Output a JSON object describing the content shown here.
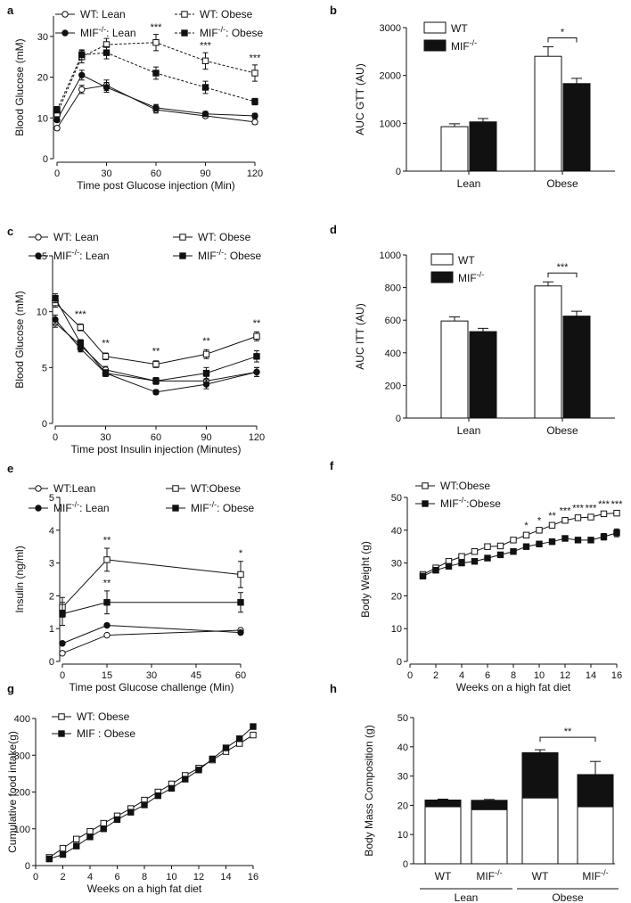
{
  "colors": {
    "ink": "#111111",
    "white": "#ffffff"
  },
  "panels": {
    "a": {
      "label": "a",
      "type": "line",
      "ylabel": "Blood Glucose (mM)",
      "xlabel": "Time post Glucose injection (Min)",
      "x": [
        0,
        15,
        30,
        60,
        90,
        120
      ],
      "xticks": [
        0,
        30,
        60,
        90,
        120
      ],
      "ylim": [
        0,
        35
      ],
      "yticks": [
        0,
        10,
        20,
        30
      ],
      "xlim": [
        0,
        120
      ],
      "series": [
        {
          "name": "WT: Lean",
          "values": [
            7.5,
            17,
            18,
            12,
            10.5,
            9
          ],
          "err": [
            0.5,
            1.0,
            1.3,
            0.8,
            0.5,
            0.5
          ],
          "marker": "circle",
          "fill": "white",
          "dash": false
        },
        {
          "name": "MIF-/-: Lean",
          "values": [
            9.5,
            20.5,
            17.5,
            12.5,
            11,
            10.5
          ],
          "err": [
            0.5,
            1.2,
            1.2,
            0.8,
            0.6,
            0.6
          ],
          "marker": "circle",
          "fill": "black",
          "dash": false
        },
        {
          "name": "WT: Obese",
          "values": [
            11,
            25,
            28,
            28.5,
            24,
            21
          ],
          "err": [
            0.8,
            1.5,
            1.5,
            2.0,
            2.0,
            2.0
          ],
          "marker": "square",
          "fill": "white",
          "dash": true
        },
        {
          "name": "MIF-/-: Obese",
          "values": [
            12,
            25.5,
            26,
            21,
            17.5,
            14
          ],
          "err": [
            0.8,
            1.2,
            1.5,
            1.5,
            1.5,
            0.8
          ],
          "marker": "square",
          "fill": "black",
          "dash": true
        }
      ],
      "annotations": [
        {
          "x": 60,
          "y": 31.5,
          "text": "***"
        },
        {
          "x": 90,
          "y": 27,
          "text": "***"
        },
        {
          "x": 120,
          "y": 24,
          "text": "***"
        }
      ]
    },
    "b": {
      "label": "b",
      "type": "bar",
      "ylabel": "AUC GTT (AU)",
      "categories": [
        "Lean",
        "Obese"
      ],
      "legend": [
        "WT",
        "MIF-/-"
      ],
      "ylim": [
        0,
        3000
      ],
      "yticks": [
        0,
        1000,
        2000,
        3000
      ],
      "series": [
        {
          "name": "WT",
          "values": [
            930,
            2400
          ],
          "err": [
            60,
            200
          ]
        },
        {
          "name": "MIF-/-",
          "values": [
            1030,
            1830
          ],
          "err": [
            70,
            110
          ]
        }
      ],
      "significance": "*"
    },
    "c": {
      "label": "c",
      "type": "line",
      "ylabel": "Blood Glucose (mM)",
      "xlabel": "Time post Insulin injection (Minutes)",
      "x": [
        0,
        15,
        30,
        60,
        90,
        120
      ],
      "xticks": [
        0,
        30,
        60,
        90,
        120
      ],
      "ylim": [
        0,
        15
      ],
      "yticks": [
        0,
        5,
        10,
        15
      ],
      "xlim": [
        0,
        120
      ],
      "series": [
        {
          "name": "WT: Lean",
          "values": [
            9.0,
            7.0,
            4.8,
            3.8,
            3.8,
            4.6
          ],
          "err": [
            0.4,
            0.3,
            0.3,
            0.3,
            0.4,
            0.4
          ],
          "marker": "circle",
          "fill": "white",
          "dash": false
        },
        {
          "name": "MIF-/-: Lean",
          "values": [
            9.3,
            6.7,
            4.5,
            2.8,
            3.5,
            4.6
          ],
          "err": [
            0.4,
            0.3,
            0.3,
            0.2,
            0.4,
            0.4
          ],
          "marker": "circle",
          "fill": "black",
          "dash": false
        },
        {
          "name": "WT: Obese",
          "values": [
            10.8,
            8.6,
            6.0,
            5.3,
            6.2,
            7.8
          ],
          "err": [
            0.4,
            0.3,
            0.3,
            0.3,
            0.4,
            0.4
          ],
          "marker": "square",
          "fill": "white",
          "dash": false
        },
        {
          "name": "MIF-/-: Obese",
          "values": [
            11.2,
            7.2,
            4.5,
            3.8,
            4.5,
            6.0
          ],
          "err": [
            0.4,
            0.3,
            0.3,
            0.3,
            0.5,
            0.5
          ],
          "marker": "square",
          "fill": "black",
          "dash": false
        }
      ],
      "annotations": [
        {
          "x": 15,
          "y": 9.5,
          "text": "***"
        },
        {
          "x": 30,
          "y": 6.9,
          "text": "**"
        },
        {
          "x": 60,
          "y": 6.2,
          "text": "**"
        },
        {
          "x": 90,
          "y": 7.1,
          "text": "**"
        },
        {
          "x": 120,
          "y": 8.7,
          "text": "**"
        }
      ]
    },
    "d": {
      "label": "d",
      "type": "bar",
      "ylabel": "AUC ITT (AU)",
      "categories": [
        "Lean",
        "Obese"
      ],
      "legend": [
        "WT",
        "MIF-/-"
      ],
      "ylim": [
        0,
        1000
      ],
      "yticks": [
        0,
        200,
        400,
        600,
        800,
        1000
      ],
      "series": [
        {
          "name": "WT",
          "values": [
            595,
            810
          ],
          "err": [
            25,
            25
          ]
        },
        {
          "name": "MIF-/-",
          "values": [
            530,
            625
          ],
          "err": [
            20,
            30
          ]
        }
      ],
      "significance": "***"
    },
    "e": {
      "label": "e",
      "type": "line",
      "ylabel": "Insulin (ng/ml)",
      "xlabel": "Time post Glucose challenge (Min)",
      "x": [
        0,
        15,
        60
      ],
      "xticks": [
        0,
        15,
        30,
        45,
        60
      ],
      "ylim": [
        0,
        5
      ],
      "yticks": [
        0,
        1,
        2,
        3,
        4,
        5
      ],
      "xlim": [
        0,
        60
      ],
      "series": [
        {
          "name": "WT:Lean",
          "values": [
            0.25,
            0.8,
            0.95
          ],
          "err": [
            0.03,
            0.05,
            0.05
          ],
          "marker": "circle",
          "fill": "white",
          "dash": false
        },
        {
          "name": "MIF-/-: Lean",
          "values": [
            0.55,
            1.1,
            0.88
          ],
          "err": [
            0.05,
            0.05,
            0.05
          ],
          "marker": "circle",
          "fill": "black",
          "dash": false
        },
        {
          "name": "WT:Obese",
          "values": [
            1.65,
            3.1,
            2.65
          ],
          "err": [
            0.3,
            0.35,
            0.4
          ],
          "marker": "square",
          "fill": "white",
          "dash": false
        },
        {
          "name": "MIF-/-: Obese",
          "values": [
            1.45,
            1.8,
            1.8
          ],
          "err": [
            0.35,
            0.35,
            0.3
          ],
          "marker": "square",
          "fill": "black",
          "dash": false
        }
      ],
      "annotations": [
        {
          "x": 15,
          "y": 3.6,
          "text": "**"
        },
        {
          "x": 15,
          "y": 2.3,
          "text": "**"
        },
        {
          "x": 60,
          "y": 3.2,
          "text": "*"
        }
      ]
    },
    "f": {
      "label": "f",
      "type": "line",
      "ylabel": "Body Weight (g)",
      "xlabel": "Weeks on a high fat diet",
      "x": [
        1,
        2,
        3,
        4,
        5,
        6,
        7,
        8,
        9,
        10,
        11,
        12,
        13,
        14,
        15,
        16
      ],
      "xticks": [
        0,
        2,
        4,
        6,
        8,
        10,
        12,
        14,
        16
      ],
      "ylim": [
        0,
        50
      ],
      "yticks": [
        0,
        10,
        20,
        30,
        40,
        50
      ],
      "xlim": [
        0,
        16
      ],
      "series": [
        {
          "name": "WT:Obese",
          "values": [
            26.5,
            28.5,
            30.5,
            32,
            33.5,
            35,
            35.2,
            37,
            38.5,
            40,
            41.5,
            43,
            43.8,
            44,
            45,
            45.2
          ],
          "err": [
            0.5,
            0.5,
            0.5,
            0.5,
            0.5,
            0.5,
            0.5,
            0.5,
            0.5,
            0.5,
            0.5,
            0.5,
            0.5,
            0.5,
            0.5,
            0.5
          ],
          "marker": "square",
          "fill": "white",
          "dash": false
        },
        {
          "name": "MIF-/-:Obese",
          "values": [
            26,
            27.8,
            29,
            30,
            30.5,
            31.5,
            32.5,
            33.5,
            35,
            35.8,
            36.5,
            37.5,
            37,
            37,
            38,
            39.2
          ],
          "err": [
            0.5,
            0.5,
            0.5,
            0.5,
            0.5,
            0.5,
            0.5,
            0.5,
            0.5,
            0.5,
            0.5,
            0.8,
            0.8,
            0.8,
            1.0,
            1.2
          ],
          "marker": "square",
          "fill": "black",
          "dash": false
        }
      ],
      "annotations": [
        {
          "x": 9,
          "y": 40.5,
          "text": "*"
        },
        {
          "x": 10,
          "y": 42,
          "text": "*"
        },
        {
          "x": 11,
          "y": 43.5,
          "text": "**"
        },
        {
          "x": 12,
          "y": 45,
          "text": "***"
        },
        {
          "x": 13,
          "y": 45.8,
          "text": "***"
        },
        {
          "x": 14,
          "y": 45.8,
          "text": "***"
        },
        {
          "x": 15,
          "y": 47,
          "text": "***"
        },
        {
          "x": 16,
          "y": 47,
          "text": "***"
        }
      ]
    },
    "g": {
      "label": "g",
      "type": "line",
      "ylabel": "Cumulative food intake(g)",
      "xlabel": "Weeks on a high fat diet",
      "x": [
        1,
        2,
        3,
        4,
        5,
        6,
        7,
        8,
        9,
        10,
        11,
        12,
        13,
        14,
        15,
        16
      ],
      "xticks": [
        0,
        2,
        4,
        6,
        8,
        10,
        12,
        14,
        16
      ],
      "ylim": [
        0,
        400
      ],
      "yticks": [
        0,
        100,
        200,
        300,
        400
      ],
      "xlim": [
        0,
        16
      ],
      "series": [
        {
          "name": "WT: Obese",
          "values": [
            22,
            47,
            72,
            93,
            115,
            135,
            155,
            178,
            200,
            222,
            245,
            265,
            287,
            310,
            332,
            355
          ],
          "marker": "square",
          "fill": "white",
          "dash": false
        },
        {
          "name": "MIF  : Obese",
          "values": [
            18,
            30,
            53,
            78,
            100,
            125,
            145,
            165,
            190,
            210,
            235,
            260,
            290,
            320,
            345,
            378
          ],
          "marker": "square",
          "fill": "black",
          "dash": false
        }
      ]
    },
    "h": {
      "label": "h",
      "type": "stacked-bar",
      "ylabel": "Body Mass Composition (g)",
      "categories": [
        "WT",
        "MIF-/-",
        "WT",
        "MIF-/-"
      ],
      "groups": [
        "Lean",
        "Obese"
      ],
      "ylim": [
        0,
        50
      ],
      "yticks": [
        0,
        10,
        20,
        30,
        40,
        50
      ],
      "lower": [
        19.5,
        18.5,
        22.5,
        19.5
      ],
      "total": [
        21.8,
        21.7,
        38,
        30.5
      ],
      "err": [
        0.3,
        0.3,
        1.0,
        4.5
      ],
      "significance": "**"
    }
  }
}
